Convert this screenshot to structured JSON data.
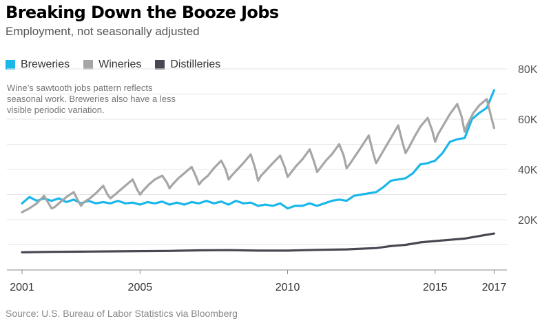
{
  "chart_data": {
    "type": "line",
    "title": "Breaking Down the Booze Jobs",
    "subtitle": "Employment, not seasonally adjusted",
    "annotation": "Wine’s sawtooth jobs pattern reflects seasonal work. Breweries also have a less visible periodic variation.",
    "source": "Source: U.S. Bureau of Labor Statistics via Bloomberg",
    "xlim": [
      2001,
      2017.2
    ],
    "ylim": [
      0,
      80000
    ],
    "x_ticks": [
      {
        "value": 2001,
        "label": "2001"
      },
      {
        "value": 2005,
        "label": "2005"
      },
      {
        "value": 2010,
        "label": "2010"
      },
      {
        "value": 2015,
        "label": "2015"
      },
      {
        "value": 2017,
        "label": "2017"
      }
    ],
    "y_ticks": [
      {
        "value": 20000,
        "label": "20K"
      },
      {
        "value": 40000,
        "label": "40K"
      },
      {
        "value": 60000,
        "label": "60K"
      },
      {
        "value": 80000,
        "label": "80K"
      }
    ],
    "grid": true,
    "legend_position": "top-left",
    "series": [
      {
        "name": "Breweries",
        "color": "#1ab7ea",
        "x": [
          2001.0,
          2001.25,
          2001.5,
          2001.75,
          2002.0,
          2002.25,
          2002.5,
          2002.75,
          2003.0,
          2003.25,
          2003.5,
          2003.75,
          2004.0,
          2004.25,
          2004.5,
          2004.75,
          2005.0,
          2005.25,
          2005.5,
          2005.75,
          2006.0,
          2006.25,
          2006.5,
          2006.75,
          2007.0,
          2007.25,
          2007.5,
          2007.75,
          2008.0,
          2008.25,
          2008.5,
          2008.75,
          2009.0,
          2009.25,
          2009.5,
          2009.75,
          2010.0,
          2010.25,
          2010.5,
          2010.75,
          2011.0,
          2011.25,
          2011.5,
          2011.75,
          2012.0,
          2012.25,
          2012.5,
          2012.75,
          2013.0,
          2013.25,
          2013.5,
          2013.75,
          2014.0,
          2014.25,
          2014.5,
          2014.75,
          2015.0,
          2015.25,
          2015.5,
          2015.75,
          2016.0,
          2016.25,
          2016.5,
          2016.75,
          2017.0
        ],
        "values": [
          26500,
          29000,
          27500,
          28500,
          27500,
          28500,
          27000,
          28000,
          26500,
          27500,
          26500,
          27000,
          26500,
          27500,
          26500,
          26800,
          26000,
          27000,
          26500,
          27200,
          26000,
          26800,
          26000,
          27000,
          26500,
          27500,
          26500,
          27200,
          26000,
          27500,
          26500,
          26800,
          25500,
          26000,
          25500,
          26500,
          24500,
          25500,
          25500,
          26500,
          25500,
          26500,
          27500,
          28000,
          27500,
          29500,
          30000,
          30500,
          31000,
          33000,
          35500,
          36000,
          36500,
          38500,
          42000,
          42500,
          43500,
          46500,
          51000,
          52000,
          52500,
          60000,
          62500,
          64500,
          71500
        ]
      },
      {
        "name": "Wineries",
        "color": "#a6a6a6",
        "x": [
          2001.0,
          2001.25,
          2001.5,
          2001.75,
          2001.9,
          2002.0,
          2002.1,
          2002.3,
          2002.5,
          2002.75,
          2002.9,
          2003.0,
          2003.1,
          2003.3,
          2003.5,
          2003.75,
          2003.9,
          2004.0,
          2004.1,
          2004.3,
          2004.5,
          2004.75,
          2004.9,
          2005.0,
          2005.1,
          2005.3,
          2005.5,
          2005.75,
          2005.9,
          2006.0,
          2006.1,
          2006.3,
          2006.5,
          2006.75,
          2006.9,
          2007.0,
          2007.1,
          2007.3,
          2007.5,
          2007.75,
          2007.9,
          2008.0,
          2008.1,
          2008.3,
          2008.5,
          2008.75,
          2008.9,
          2009.0,
          2009.1,
          2009.3,
          2009.5,
          2009.75,
          2009.9,
          2010.0,
          2010.1,
          2010.3,
          2010.5,
          2010.75,
          2010.9,
          2011.0,
          2011.1,
          2011.3,
          2011.5,
          2011.75,
          2011.9,
          2012.0,
          2012.1,
          2012.3,
          2012.5,
          2012.75,
          2012.9,
          2013.0,
          2013.1,
          2013.3,
          2013.5,
          2013.75,
          2013.9,
          2014.0,
          2014.1,
          2014.3,
          2014.5,
          2014.75,
          2014.9,
          2015.0,
          2015.1,
          2015.3,
          2015.5,
          2015.75,
          2015.9,
          2016.0,
          2016.1,
          2016.3,
          2016.5,
          2016.75,
          2016.9,
          2017.0
        ],
        "values": [
          23000,
          24500,
          26500,
          29500,
          26500,
          24500,
          25000,
          27000,
          29000,
          31000,
          27500,
          25500,
          27000,
          28500,
          30500,
          33500,
          30000,
          28500,
          29500,
          31500,
          33500,
          36000,
          32000,
          30000,
          31500,
          34000,
          36000,
          37500,
          35000,
          32500,
          34000,
          36500,
          38500,
          41000,
          37000,
          34000,
          35500,
          37500,
          40500,
          43500,
          40000,
          36000,
          37500,
          40000,
          42500,
          46000,
          40500,
          35500,
          37500,
          40000,
          42500,
          45500,
          41000,
          37000,
          38500,
          41500,
          44000,
          48000,
          43000,
          39000,
          40500,
          43500,
          46000,
          50000,
          45500,
          40500,
          42000,
          45500,
          49000,
          53500,
          46500,
          42500,
          44500,
          48500,
          52500,
          57500,
          50500,
          46500,
          48500,
          53000,
          57000,
          60500,
          55500,
          51000,
          54000,
          58000,
          62000,
          66000,
          61000,
          55000,
          58000,
          62500,
          65500,
          68000,
          61000,
          56500
        ]
      },
      {
        "name": "Distilleries",
        "color": "#4a4652",
        "x": [
          2001.0,
          2002.0,
          2003.0,
          2004.0,
          2005.0,
          2006.0,
          2007.0,
          2008.0,
          2009.0,
          2010.0,
          2011.0,
          2012.0,
          2013.0,
          2013.5,
          2014.0,
          2014.5,
          2015.0,
          2015.5,
          2016.0,
          2016.5,
          2017.0
        ],
        "values": [
          7000,
          7200,
          7300,
          7400,
          7500,
          7600,
          7800,
          7900,
          7700,
          7700,
          8000,
          8200,
          8700,
          9500,
          10000,
          11000,
          11500,
          12000,
          12500,
          13500,
          14500
        ]
      }
    ]
  }
}
